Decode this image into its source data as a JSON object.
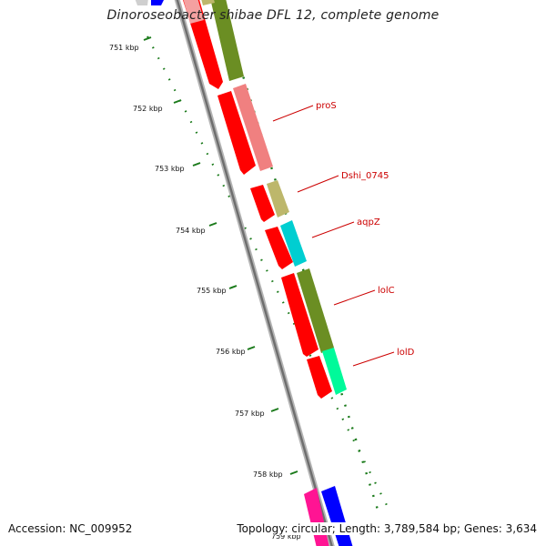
{
  "title": "Dinoroseobacter shibae DFL 12, complete genome",
  "accession": "Accession: NC_009952",
  "summary": "Topology: circular; Length: 3,789,584 bp; Genes: 3,634",
  "ticks": [
    {
      "label": "751 kbp"
    },
    {
      "label": "752 kbp"
    },
    {
      "label": "753 kbp"
    },
    {
      "label": "754 kbp"
    },
    {
      "label": "755 kbp"
    },
    {
      "label": "756 kbp"
    },
    {
      "label": "757 kbp"
    },
    {
      "label": "758 kbp"
    },
    {
      "label": "759 kbp"
    }
  ],
  "genes": [
    {
      "name": "proS",
      "color": "#f08080"
    },
    {
      "name": "Dshi_0745",
      "color": "#bdb76b"
    },
    {
      "name": "aqpZ",
      "color": "#00ced1"
    },
    {
      "name": "lolC",
      "color": "#6b8e23"
    },
    {
      "name": "lolD",
      "color": "#00fa9a"
    }
  ],
  "colors": {
    "cds": "#ff0000",
    "backbone": "#808080",
    "tick": "#1a7a1a",
    "label": "#cc0000",
    "unlabeled_features": [
      "#ff1493",
      "#0000ff",
      "#6b8e23"
    ]
  }
}
